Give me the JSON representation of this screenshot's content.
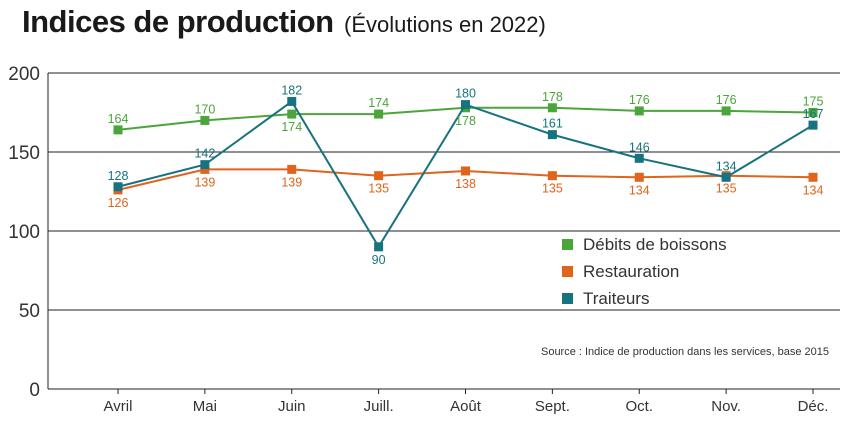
{
  "chart_data": {
    "type": "line",
    "title": "Indices de production",
    "subtitle": "(Évolutions en 2022)",
    "categories": [
      "Avril",
      "Mai",
      "Juin",
      "Juill.",
      "Août",
      "Sept.",
      "Oct.",
      "Nov.",
      "Déc."
    ],
    "ylim": [
      0,
      200
    ],
    "yticks": [
      0,
      50,
      100,
      150,
      200
    ],
    "grid": true,
    "legend_position": "right",
    "series": [
      {
        "name": "Débits de boissons",
        "color": "#4aa63a",
        "values": [
          164,
          170,
          174,
          174,
          178,
          178,
          176,
          176,
          175
        ]
      },
      {
        "name": "Restauration",
        "color": "#e0641c",
        "values": [
          126,
          139,
          139,
          135,
          138,
          135,
          134,
          135,
          134
        ]
      },
      {
        "name": "Traiteurs",
        "color": "#17737f",
        "values": [
          128,
          142,
          182,
          90,
          180,
          161,
          146,
          134,
          167
        ]
      }
    ],
    "source": "Source : Indice de production dans les services, base 2015"
  }
}
